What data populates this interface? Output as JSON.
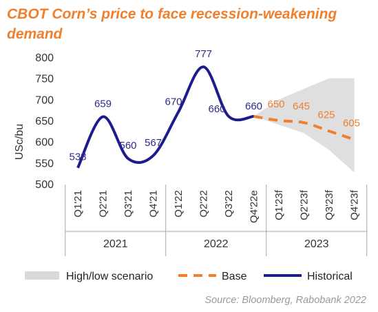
{
  "chart_data": {
    "type": "line",
    "title": "CBOT Corn’s price to face recession-weakening demand",
    "ylabel": "USc/bu",
    "ylim": [
      500,
      800
    ],
    "yticks": [
      "800",
      "750",
      "700",
      "650",
      "600",
      "550",
      "500"
    ],
    "categories": [
      "Q1'21",
      "Q2'21",
      "Q3'21",
      "Q4'21",
      "Q1'22",
      "Q2'22",
      "Q3'22",
      "Q4'22e",
      "Q1'23f",
      "Q2'23f",
      "Q3'23f",
      "Q4'23f"
    ],
    "years": [
      {
        "label": "2021",
        "from": 0,
        "to": 3
      },
      {
        "label": "2022",
        "from": 4,
        "to": 7
      },
      {
        "label": "2023",
        "from": 8,
        "to": 11
      }
    ],
    "series": [
      {
        "name": "Historical",
        "color": "#1c1c8c",
        "values": [
          538,
          659,
          560,
          567,
          670,
          777,
          660,
          660,
          null,
          null,
          null,
          null
        ],
        "labels": [
          "538",
          "659",
          "560",
          "567",
          "670",
          "777",
          "660",
          "660",
          null,
          null,
          null,
          null
        ]
      },
      {
        "name": "Base",
        "color": "#f07f2e",
        "dashed": true,
        "values": [
          null,
          null,
          null,
          null,
          null,
          null,
          null,
          660,
          650,
          645,
          625,
          605
        ],
        "labels": [
          null,
          null,
          null,
          null,
          null,
          null,
          null,
          null,
          "650",
          "645",
          "625",
          "605"
        ]
      },
      {
        "name": "High/low scenario",
        "color": "#d9d9d9",
        "high": [
          null,
          null,
          null,
          null,
          null,
          null,
          null,
          660,
          700,
          725,
          750,
          750
        ],
        "low": [
          null,
          null,
          null,
          null,
          null,
          null,
          null,
          660,
          640,
          620,
          580,
          527
        ]
      }
    ],
    "legend": [
      "High/low scenario",
      "Base",
      "Historical"
    ],
    "legend_position": "bottom",
    "grid": false
  },
  "source": "Source: Bloomberg, Rabobank 2022"
}
